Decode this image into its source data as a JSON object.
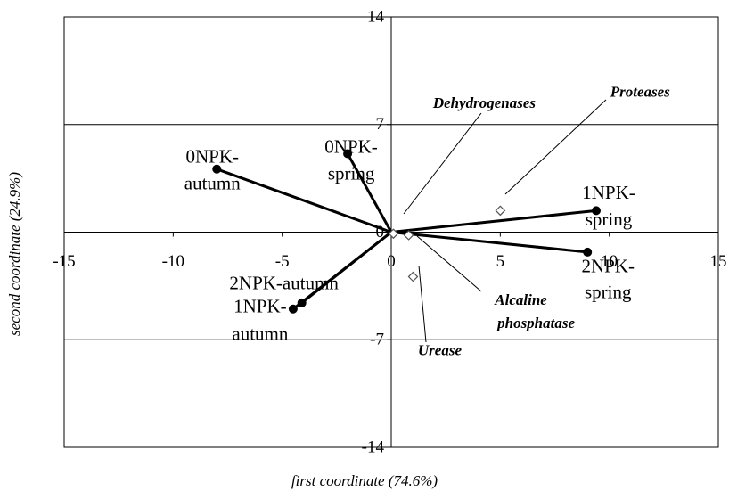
{
  "chart_data": {
    "type": "scatter",
    "x_label": "first coordinate (74.6%)",
    "y_label": "second coordinate (24.9%)",
    "xlim": [
      -15,
      15
    ],
    "ylim": [
      -14,
      14
    ],
    "xticks": [
      -15,
      -10,
      -5,
      0,
      5,
      10,
      15
    ],
    "yticks": [
      -14,
      -7,
      0,
      7,
      14
    ],
    "grid": true,
    "points": [
      {
        "label": [
          "0NPK-",
          "autumn"
        ],
        "x": -8.0,
        "y": 4.1
      },
      {
        "label": [
          "0NPK-",
          "spring"
        ],
        "x": -2.0,
        "y": 5.1
      },
      {
        "label": [
          "1NPK-",
          "spring"
        ],
        "x": 9.4,
        "y": 1.4
      },
      {
        "label": [
          "2NPK-",
          "spring"
        ],
        "x": 9.0,
        "y": -1.3
      },
      {
        "label": [
          "2NPK-autumn"
        ],
        "x": -4.1,
        "y": -4.6
      },
      {
        "label": [
          "1NPK-",
          "autumn"
        ],
        "x": -4.5,
        "y": -5.0
      }
    ],
    "variables": [
      {
        "label": [
          "Dehydrogenases"
        ],
        "x": 0.1,
        "y": -0.1
      },
      {
        "label": [
          "Proteases"
        ],
        "x": 5.0,
        "y": 1.4
      },
      {
        "label": [
          "Alcaline",
          "phosphatase"
        ],
        "x": 0.8,
        "y": -0.2
      },
      {
        "label": [
          "Urease"
        ],
        "x": 1.0,
        "y": -2.9
      }
    ]
  }
}
